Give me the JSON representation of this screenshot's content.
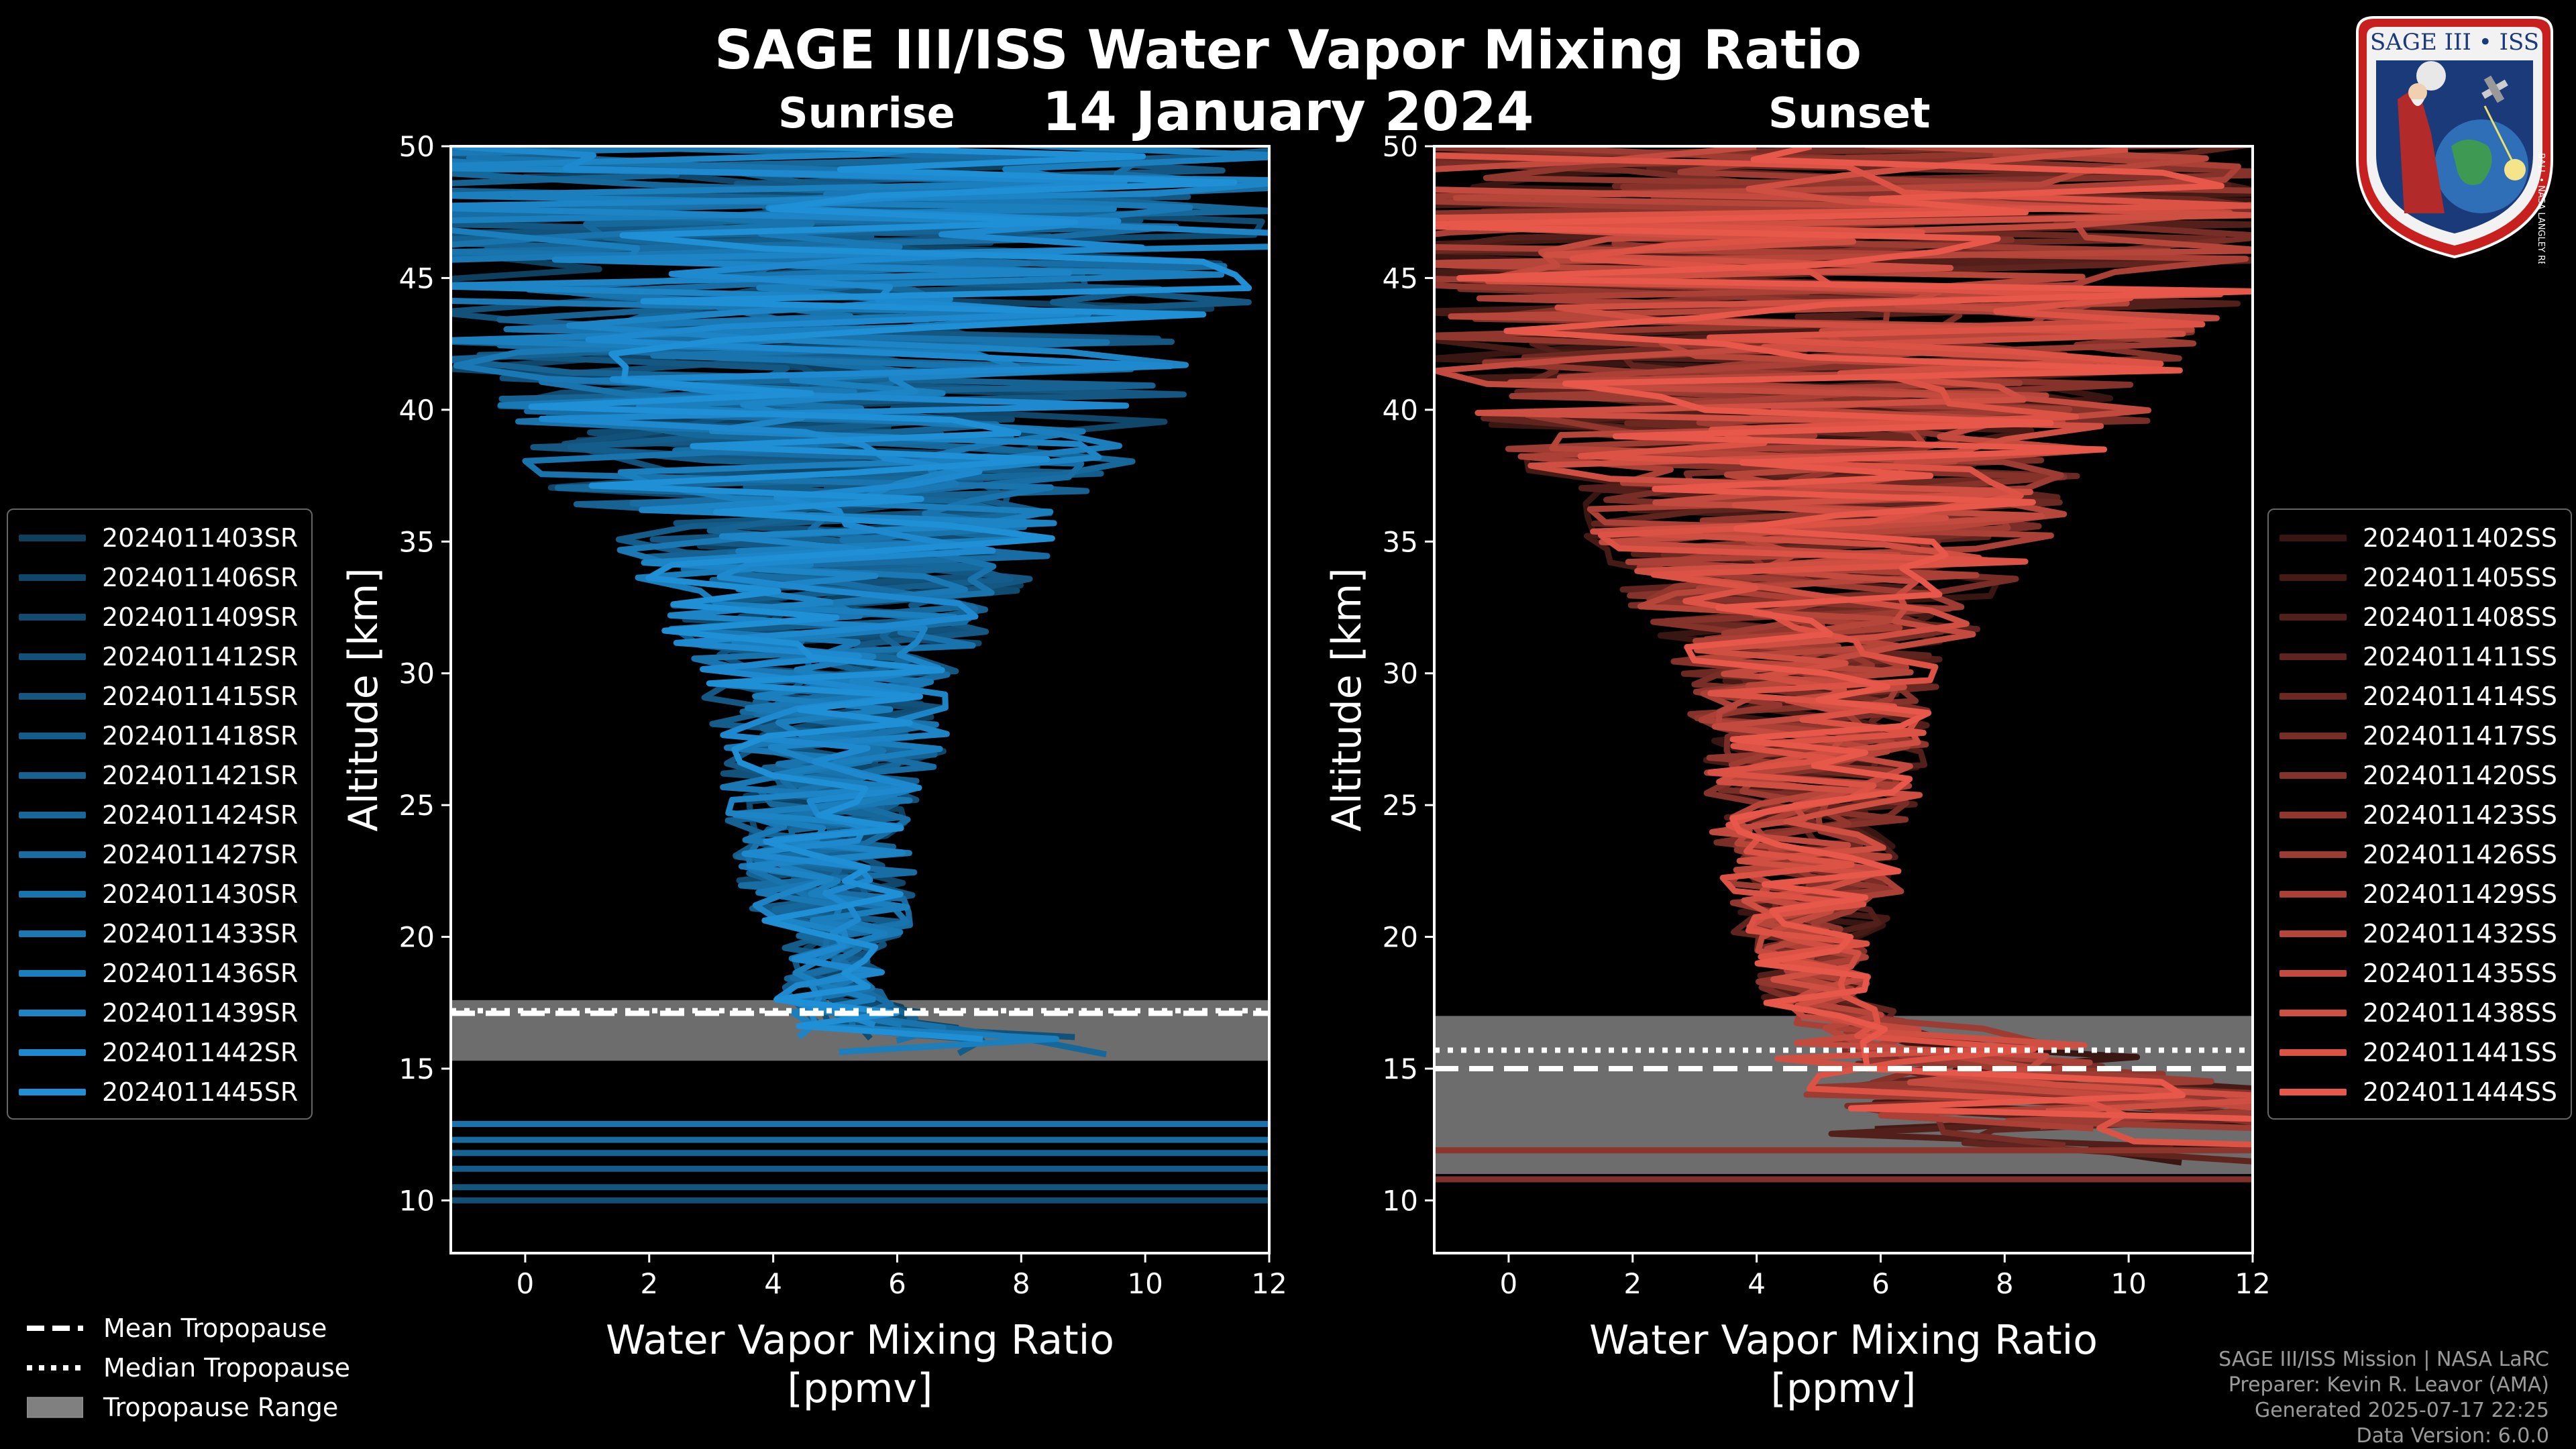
{
  "title": "SAGE III/ISS Water Vapor Mixing Ratio",
  "date": "14 January 2024",
  "sunrise_label": "Sunrise",
  "sunset_label": "Sunset",
  "logo": {
    "text_top": "SAGE III • ISS",
    "text_ring": "BALL • NASA LANGLEY RESEARCH CENTER • TAS • ESA"
  },
  "tropopause_legend": {
    "mean": "Mean Tropopause",
    "median": "Median Tropopause",
    "range": "Tropopause Range"
  },
  "credits": {
    "line1": "SAGE III/ISS Mission | NASA LaRC",
    "line2": "Preparer: Kevin R. Leavor (AMA)",
    "line3": "Generated 2025-07-17 22:25",
    "line4": "Data Version: 6.0.0"
  },
  "colors": {
    "sunrise_base": "#1f8fd6",
    "sunset_base": "#e8584a",
    "tropopause_range": "#808080"
  },
  "chart_data": [
    {
      "type": "line",
      "panel": "sunrise",
      "title": "Sunrise",
      "xlabel": "Water Vapor Mixing Ratio\n[ppmv]",
      "ylabel": "Altitude [km]",
      "xlim": [
        -1.2,
        12
      ],
      "ylim": [
        8,
        50
      ],
      "xticks": [
        0,
        2,
        4,
        6,
        8,
        10,
        12
      ],
      "yticks": [
        10,
        15,
        20,
        25,
        30,
        35,
        40,
        45,
        50
      ],
      "tropopause": {
        "mean": 17.1,
        "median": 17.2,
        "range": [
          15.3,
          17.6
        ]
      },
      "series": [
        {
          "name": "2024011403SR"
        },
        {
          "name": "2024011406SR"
        },
        {
          "name": "2024011409SR"
        },
        {
          "name": "2024011412SR"
        },
        {
          "name": "2024011415SR"
        },
        {
          "name": "2024011418SR"
        },
        {
          "name": "2024011421SR"
        },
        {
          "name": "2024011424SR"
        },
        {
          "name": "2024011427SR"
        },
        {
          "name": "2024011430SR"
        },
        {
          "name": "2024011433SR"
        },
        {
          "name": "2024011436SR"
        },
        {
          "name": "2024011439SR"
        },
        {
          "name": "2024011442SR"
        },
        {
          "name": "2024011445SR"
        }
      ]
    },
    {
      "type": "line",
      "panel": "sunset",
      "title": "Sunset",
      "xlabel": "Water Vapor Mixing Ratio\n[ppmv]",
      "ylabel": "Altitude [km]",
      "xlim": [
        -1.2,
        12
      ],
      "ylim": [
        8,
        50
      ],
      "xticks": [
        0,
        2,
        4,
        6,
        8,
        10,
        12
      ],
      "yticks": [
        10,
        15,
        20,
        25,
        30,
        35,
        40,
        45,
        50
      ],
      "tropopause": {
        "mean": 15.0,
        "median": 15.7,
        "range": [
          11.0,
          17.0
        ]
      },
      "series": [
        {
          "name": "2024011402SS"
        },
        {
          "name": "2024011405SS"
        },
        {
          "name": "2024011408SS"
        },
        {
          "name": "2024011411SS"
        },
        {
          "name": "2024011414SS"
        },
        {
          "name": "2024011417SS"
        },
        {
          "name": "2024011420SS"
        },
        {
          "name": "2024011423SS"
        },
        {
          "name": "2024011426SS"
        },
        {
          "name": "2024011429SS"
        },
        {
          "name": "2024011432SS"
        },
        {
          "name": "2024011435SS"
        },
        {
          "name": "2024011438SS"
        },
        {
          "name": "2024011441SS"
        },
        {
          "name": "2024011444SS"
        }
      ]
    }
  ]
}
